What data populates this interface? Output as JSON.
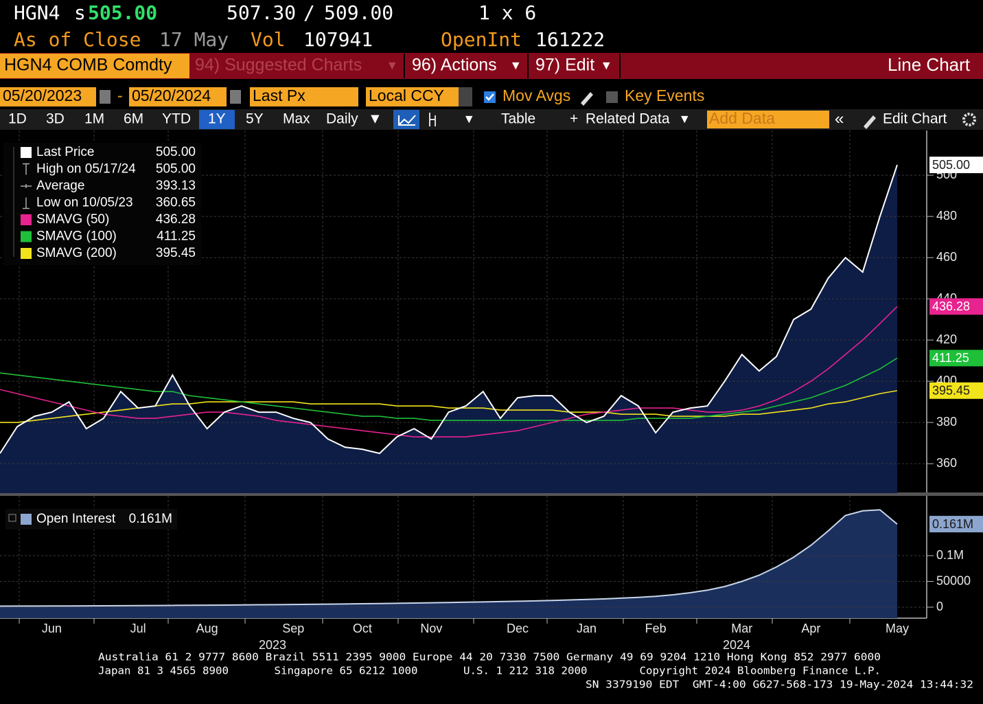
{
  "header": {
    "ticker": "HGN4",
    "s_prefix": "s",
    "last": "505.00",
    "bid": "507.30",
    "slash": "/",
    "ask": "509.00",
    "size": "1 x 6",
    "as_of": "As of Close",
    "date": "17 May",
    "vol_label": "Vol",
    "vol": "107941",
    "oi_label": "OpenInt",
    "oi": "161222"
  },
  "menu": {
    "security": "HGN4 COMB Comdty",
    "suggested": "94) Suggested Charts",
    "actions": "96) Actions",
    "edit": "97) Edit",
    "chart_type": "Line Chart"
  },
  "toolbar1": {
    "start": "05/20/2023",
    "dash": "-",
    "end": "05/20/2024",
    "field": "Last Px",
    "currency": "Local CCY",
    "mov_avgs": "Mov Avgs",
    "key_events": "Key Events"
  },
  "toolbar2": {
    "periods": [
      "1D",
      "3D",
      "1M",
      "6M",
      "YTD",
      "1Y",
      "5Y",
      "Max"
    ],
    "frequency": "Daily",
    "table": "Table",
    "related": "Related Data",
    "add_data": "Add Data",
    "edit_chart": "Edit Chart"
  },
  "chart_data": [
    {
      "type": "line",
      "ylim": [
        345.7,
        521.7
      ],
      "yticks": [
        360,
        380,
        400,
        420,
        440,
        460,
        480,
        500
      ],
      "grid": true,
      "stats": [
        {
          "name": "High on 05/17/24",
          "value": "505.00"
        },
        {
          "name": "Average",
          "value": "393.13"
        },
        {
          "name": "Low on 10/05/23",
          "value": "360.65"
        }
      ],
      "series": [
        {
          "name": "Last Price",
          "color": "#ffffff",
          "last_label": "505.00",
          "fill": "#0e1d45",
          "values": [
            365,
            378,
            383,
            385,
            390,
            377,
            382,
            395,
            387,
            388,
            403,
            388,
            377,
            385,
            388,
            385,
            385,
            382,
            380,
            372,
            368,
            367,
            365,
            373,
            377,
            372,
            385,
            388,
            395,
            382,
            392,
            393,
            393,
            385,
            380,
            383,
            393,
            388,
            375,
            385,
            387,
            388,
            400,
            413,
            405,
            412,
            430,
            435,
            450,
            460,
            453,
            480,
            505
          ]
        },
        {
          "name": "SMAVG (50)",
          "color": "#e6238e",
          "last_label": "436.28",
          "values": [
            396,
            394,
            392,
            390,
            388,
            386,
            384,
            383,
            382,
            382,
            383,
            384,
            385,
            385,
            384,
            383,
            381,
            380,
            379,
            378,
            377,
            376,
            375,
            374,
            373,
            373,
            373,
            373,
            374,
            375,
            376,
            378,
            380,
            382,
            384,
            385,
            386,
            387,
            387,
            387,
            386,
            385,
            385,
            386,
            388,
            391,
            395,
            400,
            406,
            413,
            420,
            428,
            436.28
          ]
        },
        {
          "name": "SMAVG (100)",
          "color": "#1fbf3a",
          "last_label": "411.25",
          "values": [
            404,
            403,
            402,
            401,
            400,
            399,
            398,
            397,
            396,
            395,
            395,
            393,
            392,
            391,
            390,
            389,
            388,
            387,
            386,
            385,
            384,
            383,
            383,
            382,
            382,
            381,
            381,
            381,
            381,
            381,
            381,
            381,
            381,
            381,
            381,
            381,
            381,
            382,
            382,
            382,
            382,
            383,
            384,
            385,
            386,
            388,
            390,
            392,
            395,
            398,
            402,
            406,
            411.25
          ]
        },
        {
          "name": "SMAVG (200)",
          "color": "#f2e41c",
          "last_label": "395.45",
          "values": [
            380,
            380,
            381,
            382,
            383,
            384,
            385,
            386,
            387,
            388,
            389,
            389,
            390,
            390,
            390,
            390,
            390,
            390,
            389,
            389,
            389,
            389,
            389,
            388,
            388,
            388,
            387,
            387,
            387,
            386,
            386,
            386,
            386,
            385,
            385,
            385,
            384,
            384,
            384,
            383,
            383,
            383,
            383,
            384,
            384,
            385,
            386,
            387,
            389,
            390,
            392,
            394,
            395.45
          ]
        }
      ]
    },
    {
      "type": "area",
      "categories": [
        null,
        null,
        null,
        "Jun",
        null,
        null,
        null,
        null,
        "Jul",
        null,
        null,
        null,
        "Aug",
        null,
        null,
        null,
        null,
        "Sep",
        null,
        null,
        null,
        "Oct",
        null,
        null,
        null,
        "Nov",
        null,
        null,
        null,
        null,
        "Dec",
        null,
        null,
        null,
        "Jan",
        null,
        null,
        null,
        "Feb",
        null,
        null,
        null,
        null,
        "Mar",
        null,
        null,
        null,
        "Apr",
        null,
        null,
        null,
        null,
        "May"
      ],
      "year_labels": [
        "2023",
        "2024"
      ],
      "ylim": [
        -21333,
        205333
      ],
      "yticks": [
        0,
        50000,
        {
          "value": 100000,
          "label": "0.1M"
        }
      ],
      "grid": true,
      "series": [
        {
          "name": "Open Interest",
          "color": "#c9d6ea",
          "fill": "#1b2f5c",
          "last_label": "0.161M",
          "values": [
            2000,
            2100,
            2200,
            2300,
            2400,
            2500,
            2600,
            2800,
            3000,
            3200,
            3400,
            3600,
            3800,
            4000,
            4300,
            4600,
            4900,
            5200,
            5500,
            5800,
            6200,
            6600,
            7000,
            7500,
            8000,
            8500,
            9000,
            9600,
            10200,
            10800,
            11500,
            12200,
            13000,
            14000,
            15000,
            16000,
            17500,
            19000,
            21000,
            24000,
            28000,
            33000,
            40000,
            50000,
            62000,
            78000,
            97000,
            120000,
            148000,
            178000,
            187000,
            189000,
            161222
          ]
        }
      ]
    }
  ],
  "footer": [
    "Australia 61 2 9777 8600 Brazil 5511 2395 9000 Europe 44 20 7330 7500 Germany 49 69 9204 1210 Hong Kong 852 2977 6000",
    "Japan 81 3 4565 8900       Singapore 65 6212 1000       U.S. 1 212 318 2000        Copyright 2024 Bloomberg Finance L.P.",
    "SN 3379190 EDT  GMT-4:00 G627-568-173 19-May-2024 13:44:32"
  ]
}
